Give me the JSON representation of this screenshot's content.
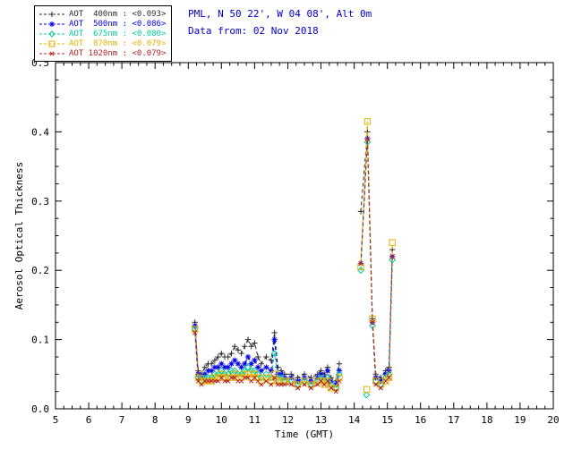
{
  "header": {
    "station_line": "PML, N 50 22', W 04 08', Alt 0m",
    "date_line": "Data from: 02 Nov 2018",
    "color": "#0000cc"
  },
  "chart_data": {
    "type": "line",
    "title": "",
    "xlabel": "Time (GMT)",
    "ylabel": "Aerosol Optical Thickness",
    "xlim": [
      5,
      20
    ],
    "ylim": [
      0.0,
      0.5
    ],
    "grid": false,
    "legend_position": "top-left",
    "xticks": [
      5,
      6,
      7,
      8,
      9,
      10,
      11,
      12,
      13,
      14,
      15,
      16,
      17,
      18,
      19,
      20
    ],
    "xtick_labels": [
      "5",
      "6",
      "7",
      "8",
      "9",
      "10",
      "11",
      "12",
      "13",
      "14",
      "15",
      "16",
      "17",
      "18",
      "19",
      "20"
    ],
    "yticks": [
      0.0,
      0.1,
      0.2,
      0.3,
      0.4,
      0.5
    ],
    "ytick_labels": [
      "0.0",
      "0.1",
      "0.2",
      "0.3",
      "0.4",
      "0.5"
    ],
    "x_minor_step": 0.25,
    "y_minor_step": 0.025,
    "x": [
      9.2,
      9.3,
      9.4,
      9.5,
      9.6,
      9.7,
      9.8,
      9.9,
      10.0,
      10.1,
      10.2,
      10.3,
      10.4,
      10.5,
      10.6,
      10.7,
      10.8,
      10.9,
      11.0,
      11.1,
      11.2,
      11.35,
      11.5,
      11.6,
      11.7,
      11.8,
      11.9,
      12.1,
      12.3,
      12.5,
      12.7,
      12.9,
      13.0,
      13.1,
      13.2,
      13.3,
      13.45,
      13.55,
      13.9,
      14.2,
      14.4,
      14.55,
      14.65,
      14.8,
      14.95,
      15.05,
      15.15
    ],
    "series": [
      {
        "id": "aot-400nm",
        "name": "AOT 400nm",
        "legend_label": "AOT  400nm : <0.093>",
        "mean_label": "<0.093>",
        "color": "#2b2b2b",
        "marker": "plus",
        "values": [
          0.125,
          0.055,
          0.05,
          0.06,
          0.065,
          0.065,
          0.07,
          0.075,
          0.08,
          0.075,
          0.075,
          0.08,
          0.09,
          0.085,
          0.08,
          0.09,
          0.1,
          0.09,
          0.095,
          0.075,
          0.065,
          0.075,
          0.07,
          0.11,
          0.06,
          0.055,
          0.05,
          0.05,
          0.045,
          0.05,
          0.045,
          0.05,
          0.055,
          0.05,
          0.06,
          0.045,
          0.04,
          0.065,
          null,
          0.285,
          0.4,
          0.13,
          0.05,
          0.045,
          0.055,
          0.06,
          0.23
        ]
      },
      {
        "id": "aot-500nm",
        "name": "AOT 500nm",
        "legend_label": "AOT  500nm : <0.086>",
        "mean_label": "<0.086>",
        "color": "#0000ee",
        "marker": "asterisk",
        "values": [
          0.12,
          0.05,
          0.045,
          0.05,
          0.055,
          0.055,
          0.06,
          0.06,
          0.065,
          0.06,
          0.06,
          0.065,
          0.07,
          0.065,
          0.06,
          0.065,
          0.075,
          0.065,
          0.07,
          0.06,
          0.055,
          0.06,
          0.055,
          0.1,
          0.05,
          0.05,
          0.045,
          0.045,
          0.04,
          0.045,
          0.04,
          0.045,
          0.05,
          0.045,
          0.055,
          0.04,
          0.035,
          0.055,
          null,
          0.21,
          0.39,
          0.125,
          0.045,
          0.04,
          0.05,
          0.055,
          0.22
        ]
      },
      {
        "id": "aot-675nm",
        "name": "AOT 675nm",
        "legend_label": "AOT  675nm : <0.080>",
        "mean_label": "<0.080>",
        "color": "#00cc99",
        "marker": "diamond",
        "values": [
          0.115,
          0.045,
          0.04,
          0.045,
          0.045,
          0.045,
          0.05,
          0.05,
          0.055,
          0.05,
          0.05,
          0.055,
          0.055,
          0.05,
          0.05,
          0.055,
          0.06,
          0.055,
          0.055,
          0.05,
          0.045,
          0.05,
          0.045,
          0.08,
          0.045,
          0.045,
          0.04,
          0.04,
          0.035,
          0.04,
          0.035,
          0.04,
          0.045,
          0.04,
          0.045,
          0.035,
          0.03,
          0.05,
          null,
          0.2,
          0.385,
          0.12,
          0.04,
          0.035,
          0.045,
          0.05,
          0.215
        ]
      },
      {
        "id": "aot-870nm",
        "name": "AOT 870nm",
        "legend_label": "AOT  870nm : <0.079>",
        "mean_label": "<0.079>",
        "color": "#e8b000",
        "marker": "square",
        "values": [
          0.115,
          0.045,
          0.04,
          0.04,
          0.04,
          0.04,
          0.045,
          0.045,
          0.05,
          0.045,
          0.045,
          0.045,
          0.05,
          0.045,
          0.045,
          0.05,
          0.05,
          0.045,
          0.05,
          0.045,
          0.04,
          0.045,
          0.04,
          0.05,
          0.04,
          0.04,
          0.04,
          0.04,
          0.035,
          0.04,
          0.035,
          0.04,
          0.04,
          0.035,
          0.04,
          0.03,
          0.03,
          0.045,
          null,
          0.205,
          0.415,
          0.13,
          0.04,
          0.035,
          0.04,
          0.045,
          0.24
        ]
      },
      {
        "id": "aot-1020nm",
        "name": "AOT 1020nm",
        "legend_label": "AOT 1020nm : <0.079>",
        "mean_label": "<0.079>",
        "color": "#b22222",
        "marker": "cross",
        "values": [
          0.11,
          0.04,
          0.035,
          0.04,
          0.04,
          0.04,
          0.04,
          0.04,
          0.045,
          0.04,
          0.04,
          0.045,
          0.045,
          0.04,
          0.04,
          0.045,
          0.045,
          0.04,
          0.045,
          0.04,
          0.035,
          0.04,
          0.035,
          0.045,
          0.035,
          0.035,
          0.035,
          0.035,
          0.03,
          0.035,
          0.03,
          0.035,
          0.04,
          0.035,
          0.04,
          0.03,
          0.025,
          0.04,
          null,
          0.21,
          0.39,
          0.125,
          0.035,
          0.03,
          0.04,
          0.045,
          0.22
        ]
      }
    ],
    "outliers": [
      {
        "series": "AOT 675nm",
        "x": 14.37,
        "y": 0.02
      },
      {
        "series": "AOT 870nm",
        "x": 14.38,
        "y": 0.028
      }
    ]
  }
}
